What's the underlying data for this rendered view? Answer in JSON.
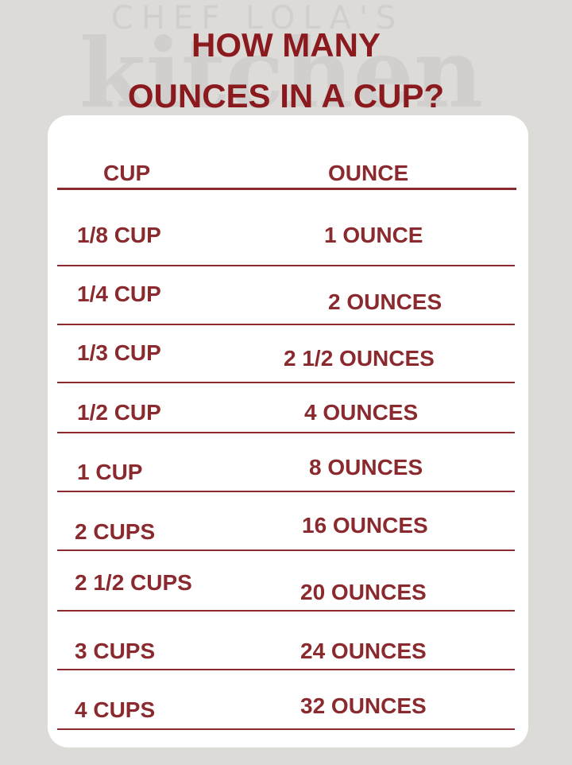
{
  "title": {
    "line1": "HOW MANY",
    "line2": "OUNCES IN A CUP?"
  },
  "watermark": {
    "line1": "CHEF LOLA'S",
    "line2": "kitchen"
  },
  "colors": {
    "text": "#8b1a1f",
    "background": "#dcdbd8",
    "card": "#ffffff"
  },
  "table": {
    "headers": {
      "cup": "CUP",
      "ounce": "OUNCE"
    },
    "rows": [
      {
        "cup": "1/8 CUP",
        "ounce": "1 OUNCE"
      },
      {
        "cup": "1/4 CUP",
        "ounce": "2 OUNCES"
      },
      {
        "cup": "1/3 CUP",
        "ounce": "2 1/2 OUNCES"
      },
      {
        "cup": "1/2 CUP",
        "ounce": "4  OUNCES"
      },
      {
        "cup": "1 CUP",
        "ounce": "8 OUNCES"
      },
      {
        "cup": "2 CUPS",
        "ounce": "16 OUNCES"
      },
      {
        "cup": "2 1/2 CUPS",
        "ounce": "20 OUNCES"
      },
      {
        "cup": "3 CUPS",
        "ounce": "24 OUNCES"
      },
      {
        "cup": "4 CUPS",
        "ounce": "32 OUNCES"
      }
    ]
  }
}
